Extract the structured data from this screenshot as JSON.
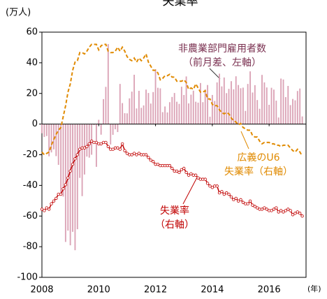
{
  "chart_data": {
    "type": "bar_line",
    "title": "失業率",
    "y_label": "(万人)",
    "x_label": "(年)",
    "annotations": [
      "非農業部門雇用者数",
      "（前月差、左軸）",
      "広義のU6",
      "失業率（右軸）",
      "失業率",
      "（右軸）"
    ],
    "xlim": [
      2008,
      2017.3
    ],
    "xticks": [
      2008,
      2010,
      2012,
      2014,
      2016
    ],
    "ylim": [
      -100,
      60
    ],
    "yticks": [
      -100,
      -80,
      -60,
      -40,
      -20,
      0,
      20,
      40,
      60
    ],
    "y2lim": [
      0,
      18
    ],
    "x": [
      2008,
      2008.083,
      2008.167,
      2008.25,
      2008.333,
      2008.417,
      2008.5,
      2008.583,
      2008.667,
      2008.75,
      2008.833,
      2008.917,
      2009,
      2009.083,
      2009.167,
      2009.25,
      2009.333,
      2009.417,
      2009.5,
      2009.583,
      2009.667,
      2009.75,
      2009.833,
      2009.917,
      2010,
      2010.083,
      2010.167,
      2010.25,
      2010.333,
      2010.417,
      2010.5,
      2010.583,
      2010.667,
      2010.75,
      2010.833,
      2010.917,
      2011,
      2011.083,
      2011.167,
      2011.25,
      2011.333,
      2011.417,
      2011.5,
      2011.583,
      2011.667,
      2011.75,
      2011.833,
      2011.917,
      2012,
      2012.083,
      2012.167,
      2012.25,
      2012.333,
      2012.417,
      2012.5,
      2012.583,
      2012.667,
      2012.75,
      2012.833,
      2012.917,
      2013,
      2013.083,
      2013.167,
      2013.25,
      2013.333,
      2013.417,
      2013.5,
      2013.583,
      2013.667,
      2013.75,
      2013.833,
      2013.917,
      2014,
      2014.083,
      2014.167,
      2014.25,
      2014.333,
      2014.417,
      2014.5,
      2014.583,
      2014.667,
      2014.75,
      2014.833,
      2014.917,
      2015,
      2015.083,
      2015.167,
      2015.25,
      2015.333,
      2015.417,
      2015.5,
      2015.583,
      2015.667,
      2015.75,
      2015.833,
      2015.917,
      2016,
      2016.083,
      2016.167,
      2016.25,
      2016.333,
      2016.417,
      2016.5,
      2016.583,
      2016.667,
      2016.75,
      2016.833,
      2016.917,
      2017,
      2017.083,
      2017.167
    ],
    "series": [
      {
        "name": "非農業部門雇用者数",
        "kind": "bar",
        "color": "#dba3b6",
        "values": [
          -6,
          -8.4,
          -7.8,
          -21,
          -18.5,
          -16.5,
          -20.9,
          -26.6,
          -45.2,
          -47.3,
          -76.9,
          -69.5,
          -79.1,
          -70.3,
          -82.3,
          -68.6,
          -35.1,
          -47,
          -32.9,
          -21.2,
          -21.9,
          -20,
          -0.7,
          -27.9,
          2.8,
          -6.9,
          16.3,
          24.3,
          52.2,
          -13.3,
          -7,
          -3.4,
          -5.2,
          26.2,
          13.7,
          7.1,
          7,
          16.8,
          21.2,
          32.2,
          10.2,
          21.7,
          10.6,
          12.2,
          22.5,
          20.3,
          13.4,
          20.9,
          35.8,
          23.7,
          23.3,
          7.8,
          11.5,
          7.6,
          14.3,
          17.7,
          20.3,
          14.6,
          13.2,
          24.4,
          19,
          31.1,
          13.5,
          19.2,
          21.8,
          14.6,
          14,
          26.8,
          14.3,
          22.6,
          25.5,
          4.8,
          19,
          15.1,
          27.2,
          32.9,
          24.6,
          30.4,
          20.2,
          23,
          28,
          22.7,
          31.2,
          25.5,
          23.4,
          23.8,
          8.6,
          26.2,
          34.4,
          20.6,
          25.4,
          15.7,
          10,
          32.1,
          27.2,
          23.9,
          12.6,
          23.7,
          22.5,
          15.3,
          4.3,
          29.7,
          29.1,
          17.6,
          24.9,
          12.4,
          16.4,
          15.5,
          21.6,
          23.2,
          5
        ]
      },
      {
        "name": "広義のU6",
        "kind": "line",
        "dash": true,
        "axis": "y2",
        "color": "#e08a00",
        "values": [
          9.2,
          9,
          9.1,
          9.2,
          9.7,
          10.1,
          10.5,
          10.8,
          11,
          11.8,
          12.6,
          13.6,
          14.2,
          15.2,
          15.8,
          15.9,
          16.5,
          16.5,
          16.4,
          16.6,
          16.9,
          17.1,
          17.1,
          17.1,
          16.7,
          17,
          17.1,
          17.1,
          16.6,
          16.5,
          16.5,
          16.6,
          16.9,
          16.6,
          16.9,
          16.6,
          16.2,
          16,
          15.9,
          16.1,
          15.8,
          16.1,
          15.9,
          16.1,
          16.4,
          15.8,
          15.5,
          15.2,
          15.2,
          15,
          14.5,
          14.6,
          14.8,
          14.8,
          14.9,
          14.7,
          14.7,
          14.4,
          14.4,
          14.4,
          14.5,
          14.3,
          13.8,
          13.9,
          13.8,
          14.2,
          13.9,
          13.6,
          13.6,
          13.7,
          13.1,
          13.1,
          12.7,
          12.6,
          12.6,
          12.3,
          12.1,
          12,
          12.1,
          12,
          11.7,
          11.5,
          11.4,
          11.2,
          11.3,
          11,
          10.9,
          10.8,
          10.8,
          10.4,
          10.3,
          10.3,
          10,
          9.8,
          9.9,
          9.9,
          9.9,
          9.8,
          9.8,
          9.7,
          9.7,
          9.6,
          9.7,
          9.7,
          9.7,
          9.5,
          9.3,
          9.2,
          9.4,
          9.2,
          8.9
        ]
      },
      {
        "name": "失業率",
        "kind": "line",
        "markers": true,
        "axis": "y2",
        "color": "#c00000",
        "values": [
          5,
          4.9,
          5.1,
          5,
          5.4,
          5.6,
          5.8,
          6.1,
          6.1,
          6.5,
          6.8,
          7.3,
          7.8,
          8.3,
          8.7,
          9,
          9.4,
          9.5,
          9.5,
          9.6,
          9.8,
          10,
          9.9,
          9.9,
          9.8,
          9.8,
          9.9,
          9.9,
          9.6,
          9.4,
          9.4,
          9.5,
          9.5,
          9.4,
          9.8,
          9.3,
          9.1,
          9,
          9,
          9.1,
          9,
          9.1,
          9,
          9,
          9,
          8.8,
          8.6,
          8.5,
          8.3,
          8.3,
          8.2,
          8.2,
          8.2,
          8.2,
          8.2,
          8,
          7.8,
          7.8,
          7.7,
          7.9,
          8,
          7.7,
          7.5,
          7.6,
          7.5,
          7.5,
          7.3,
          7.2,
          7.2,
          7.2,
          6.9,
          6.7,
          6.6,
          6.7,
          6.7,
          6.2,
          6.3,
          6.1,
          6.2,
          6.1,
          5.9,
          5.7,
          5.8,
          5.6,
          5.7,
          5.5,
          5.4,
          5.4,
          5.6,
          5.3,
          5.2,
          5.1,
          5,
          5,
          5.1,
          5,
          4.9,
          4.9,
          5,
          5.1,
          4.8,
          4.9,
          4.8,
          4.9,
          5,
          4.9,
          4.6,
          4.7,
          4.8,
          4.7,
          4.5
        ]
      }
    ]
  }
}
